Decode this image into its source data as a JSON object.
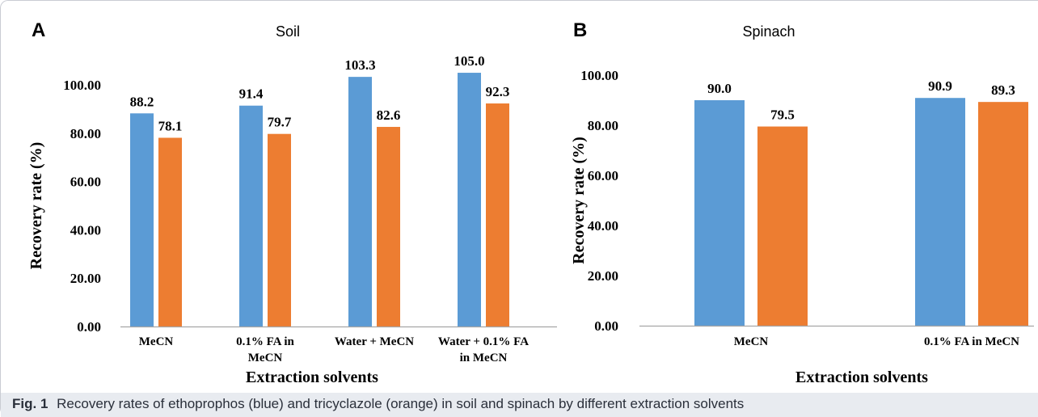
{
  "caption": {
    "label": "Fig. 1",
    "text": "Recovery rates of ethoprophos (blue) and tricyclazole (orange) in soil and spinach by different extraction solvents"
  },
  "colors": {
    "ethoprophos": "#5b9bd5",
    "tricyclazole": "#ed7d31",
    "axis": "#a6a6a6",
    "text": "#000000"
  },
  "chart_data": [
    {
      "type": "bar",
      "panel_label": "A",
      "title": "Soil",
      "xlabel": "Extraction solvents",
      "ylabel": "Recovery rate (%)",
      "ylim": [
        0,
        100
      ],
      "yticks": [
        "0.00",
        "20.00",
        "40.00",
        "60.00",
        "80.00",
        "100.00"
      ],
      "categories": [
        [
          "MeCN"
        ],
        [
          "0.1% FA in",
          "MeCN"
        ],
        [
          "Water + MeCN"
        ],
        [
          "Water + 0.1% FA",
          "in MeCN"
        ]
      ],
      "series": [
        {
          "values": [
            88.2,
            91.4,
            103.3,
            105.0
          ],
          "labels": [
            "88.2",
            "91.4",
            "103.3",
            "105.0"
          ],
          "color": "#5b9bd5"
        },
        {
          "values": [
            78.1,
            79.7,
            82.6,
            92.3
          ],
          "labels": [
            "78.1",
            "79.7",
            "82.6",
            "92.3"
          ],
          "color": "#ed7d31"
        }
      ],
      "grid": false,
      "legend": "none"
    },
    {
      "type": "bar",
      "panel_label": "B",
      "title": "Spinach",
      "xlabel": "Extraction solvents",
      "ylabel": "Recovery rate (%)",
      "ylim": [
        0,
        100
      ],
      "yticks": [
        "0.00",
        "20.00",
        "40.00",
        "60.00",
        "80.00",
        "100.00"
      ],
      "categories": [
        [
          "MeCN"
        ],
        [
          "0.1% FA in MeCN"
        ]
      ],
      "series": [
        {
          "values": [
            90.0,
            90.9
          ],
          "labels": [
            "90.0",
            "90.9"
          ],
          "color": "#5b9bd5"
        },
        {
          "values": [
            79.5,
            89.3
          ],
          "labels": [
            "79.5",
            "89.3"
          ],
          "color": "#ed7d31"
        }
      ],
      "grid": false,
      "legend": "none"
    }
  ]
}
